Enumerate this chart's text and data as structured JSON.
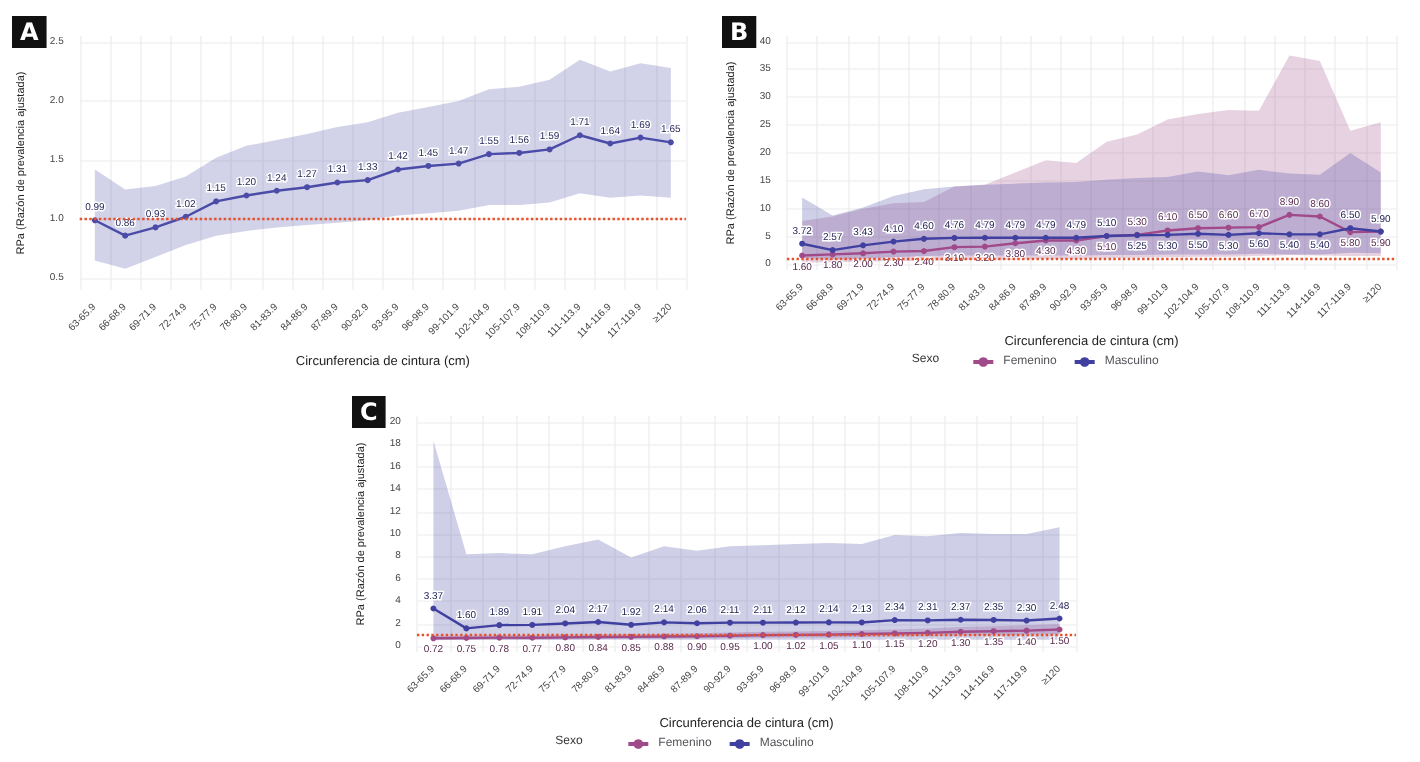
{
  "chart_data": [
    {
      "type": "line",
      "title": "A",
      "xlabel": "Circunferencia de cintura (cm)",
      "ylabel": "RPa (Razón de prevalencia ajustada)",
      "categories": [
        "63-65.9",
        "66-68.9",
        "69-71.9",
        "72-74.9",
        "75-77.9",
        "78-80.9",
        "81-83.9",
        "84-86.9",
        "87-89.9",
        "90-92.9",
        "93-95.9",
        "96-98.9",
        "99-101.9",
        "102-104.9",
        "105-107.9",
        "108-110.9",
        "111-113.9",
        "114-116.9",
        "117-119.9",
        "≥120"
      ],
      "series": [
        {
          "color": "#4b4ba8",
          "values": [
            0.99,
            0.86,
            0.93,
            1.02,
            1.15,
            1.2,
            1.24,
            1.27,
            1.31,
            1.33,
            1.42,
            1.45,
            1.47,
            1.55,
            1.56,
            1.59,
            1.71,
            1.64,
            1.69,
            1.65
          ],
          "value_labels": [
            "0.99",
            "0.86",
            "0.93",
            "1.02",
            "1.15",
            "1.20",
            "1.24",
            "1.27",
            "1.31",
            "1.33",
            "1.42",
            "1.45",
            "1.47",
            "1.55",
            "1.56",
            "1.59",
            "1.71",
            "1.64",
            "1.69",
            "1.65"
          ],
          "lower": [
            0.65,
            0.58,
            0.68,
            0.78,
            0.86,
            0.9,
            0.93,
            0.95,
            0.97,
            0.99,
            1.03,
            1.05,
            1.07,
            1.12,
            1.12,
            1.14,
            1.22,
            1.18,
            1.2,
            1.18
          ],
          "upper": [
            1.42,
            1.25,
            1.28,
            1.36,
            1.52,
            1.62,
            1.67,
            1.72,
            1.78,
            1.82,
            1.9,
            1.95,
            2.0,
            2.1,
            2.12,
            2.18,
            2.35,
            2.25,
            2.32,
            2.28
          ]
        }
      ],
      "ylim": [
        0.4,
        2.55
      ],
      "yticks": [
        {
          "value": 0.5,
          "label": "0.5"
        },
        {
          "value": 1,
          "label": "1.0"
        },
        {
          "value": 1.5,
          "label": "1.5"
        },
        {
          "value": 2,
          "label": "2.0"
        },
        {
          "value": 2.5,
          "label": "2.5"
        }
      ],
      "ref_lines": [
        {
          "axis": "y",
          "value": 1,
          "color": "#e8502a",
          "line_style": "dotted"
        }
      ],
      "grid": true,
      "marker": "circle",
      "line_style": "solid"
    },
    {
      "type": "line",
      "title": "B",
      "xlabel": "Circunferencia de cintura (cm)",
      "ylabel": "RPa (Razón de prevalencia ajustada)",
      "legend_title": "Sexo",
      "categories": [
        "63-65.9",
        "66-68.9",
        "69-71.9",
        "72-74.9",
        "75-77.9",
        "78-80.9",
        "81-83.9",
        "84-86.9",
        "87-89.9",
        "90-92.9",
        "93-95.9",
        "96-98.9",
        "99-101.9",
        "102-104.9",
        "105-107.9",
        "108-110.9",
        "111-113.9",
        "114-116.9",
        "117-119.9",
        "≥120"
      ],
      "series": [
        {
          "name": "Femenino",
          "color": "#a04a8a",
          "values": [
            1.6,
            1.8,
            2,
            2.3,
            2.4,
            3.1,
            3.2,
            3.8,
            4.3,
            4.3,
            5.1,
            5.3,
            6.1,
            6.5,
            6.6,
            6.7,
            8.9,
            8.6,
            5.8,
            5.9
          ],
          "value_labels": [
            "1.60",
            "1.80",
            "2.00",
            "2.30",
            "2.40",
            "3.10",
            "3.20",
            "3.80",
            "4.30",
            "4.30",
            "5.10",
            "5.30",
            "6.10",
            "6.50",
            "6.60",
            "6.70",
            "8.90",
            "8.60",
            "5.80",
            "5.90"
          ],
          "lower": [
            0.3,
            0.4,
            0.5,
            0.6,
            0.6,
            0.8,
            0.8,
            0.9,
            1.0,
            1.0,
            1.1,
            1.2,
            1.3,
            1.4,
            1.4,
            1.5,
            1.7,
            1.6,
            1.5,
            1.5
          ],
          "upper": [
            7.8,
            8.6,
            10.0,
            11.0,
            11.2,
            14.0,
            14.3,
            16.5,
            18.7,
            18.2,
            22.0,
            23.3,
            26.0,
            27.0,
            27.7,
            27.6,
            37.5,
            36.5,
            24.0,
            25.5
          ]
        },
        {
          "name": "Masculino",
          "color": "#4040a0",
          "values": [
            3.72,
            2.57,
            3.43,
            4.1,
            4.6,
            4.76,
            4.79,
            4.79,
            4.79,
            4.79,
            5.1,
            5.25,
            5.3,
            5.5,
            5.3,
            5.6,
            5.4,
            5.4,
            6.5,
            5.9
          ],
          "value_labels": [
            "3.72",
            "2.57",
            "3.43",
            "4.10",
            "4.60",
            "4.76",
            "4.79",
            "4.79",
            "4.79",
            "4.79",
            "5.10",
            "5.25",
            "5.30",
            "5.50",
            "5.30",
            "5.60",
            "5.40",
            "5.40",
            "6.50",
            "5.90"
          ],
          "lower": [
            1.2,
            0.8,
            1.1,
            1.3,
            1.5,
            1.6,
            1.6,
            1.6,
            1.6,
            1.6,
            1.7,
            1.7,
            1.8,
            1.8,
            1.8,
            1.9,
            1.8,
            1.8,
            2.1,
            2.0
          ],
          "upper": [
            12.0,
            8.8,
            10.2,
            12.3,
            13.5,
            14.0,
            14.3,
            14.5,
            14.7,
            14.8,
            15.2,
            15.5,
            15.7,
            16.7,
            16.0,
            17.0,
            16.3,
            16.1,
            20.0,
            16.5
          ]
        }
      ],
      "ylim": [
        -1,
        41
      ],
      "yticks": [
        0,
        5,
        10,
        15,
        20,
        25,
        30,
        35,
        40
      ],
      "ref_lines": [
        {
          "axis": "y",
          "value": 1,
          "color": "#e8502a",
          "line_style": "dotted"
        }
      ],
      "grid": true,
      "legend": "bottom",
      "marker": "circle",
      "line_style": "solid"
    },
    {
      "type": "line",
      "title": "C",
      "xlabel": "Circunferencia de cintura (cm)",
      "ylabel": "RPa (Razón de prevalencia ajustada)",
      "legend_title": "Sexo",
      "categories": [
        "63-65.9",
        "66-68.9",
        "69-71.9",
        "72-74.9",
        "75-77.9",
        "78-80.9",
        "81-83.9",
        "84-86.9",
        "87-89.9",
        "90-92.9",
        "93-95.9",
        "96-98.9",
        "99-101.9",
        "102-104.9",
        "105-107.9",
        "108-110.9",
        "111-113.9",
        "114-116.9",
        "117-119.9",
        "≥120"
      ],
      "series": [
        {
          "name": "Femenino",
          "color": "#a04a8a",
          "values": [
            0.72,
            0.75,
            0.78,
            0.77,
            0.8,
            0.84,
            0.85,
            0.88,
            0.9,
            0.95,
            1,
            1.02,
            1.05,
            1.1,
            1.15,
            1.2,
            1.3,
            1.35,
            1.4,
            1.5
          ],
          "value_labels": [
            "0.72",
            "0.75",
            "0.78",
            "0.77",
            "0.80",
            "0.84",
            "0.85",
            "0.88",
            "0.90",
            "0.95",
            "1.00",
            "1.02",
            "1.05",
            "1.10",
            "1.15",
            "1.20",
            "1.30",
            "1.35",
            "1.40",
            "1.50"
          ],
          "lower": [
            0.55,
            0.58,
            0.6,
            0.6,
            0.62,
            0.65,
            0.66,
            0.68,
            0.7,
            0.73,
            0.76,
            0.78,
            0.8,
            0.84,
            0.87,
            0.9,
            0.97,
            1.0,
            1.03,
            1.1
          ],
          "upper": [
            0.95,
            0.97,
            1.0,
            1.0,
            1.03,
            1.08,
            1.1,
            1.13,
            1.16,
            1.23,
            1.3,
            1.33,
            1.37,
            1.44,
            1.5,
            1.58,
            1.72,
            1.8,
            1.88,
            2.0
          ]
        },
        {
          "name": "Masculino",
          "color": "#4040a0",
          "values": [
            3.37,
            1.6,
            1.89,
            1.91,
            2.04,
            2.17,
            1.92,
            2.14,
            2.06,
            2.11,
            2.11,
            2.12,
            2.14,
            2.13,
            2.34,
            2.31,
            2.37,
            2.35,
            2.3,
            2.48
          ],
          "value_labels": [
            "3.37",
            "1.60",
            "1.89",
            "1.91",
            "2.04",
            "2.17",
            "1.92",
            "2.14",
            "2.06",
            "2.11",
            "2.11",
            "2.12",
            "2.14",
            "2.13",
            "2.34",
            "2.31",
            "2.37",
            "2.35",
            "2.30",
            "2.48"
          ],
          "lower": [
            0.6,
            0.6,
            0.6,
            0.6,
            0.6,
            0.6,
            0.6,
            0.6,
            0.6,
            0.6,
            0.6,
            0.6,
            0.6,
            0.6,
            0.6,
            0.6,
            0.6,
            0.6,
            0.6,
            0.6
          ],
          "upper": [
            18.3,
            8.2,
            8.3,
            8.2,
            8.9,
            9.5,
            7.9,
            8.9,
            8.5,
            8.9,
            9.0,
            9.1,
            9.2,
            9.1,
            9.9,
            9.8,
            10.1,
            10.0,
            10.0,
            10.6
          ]
        }
      ],
      "ylim": [
        -0.5,
        20.5
      ],
      "yticks": [
        0,
        2,
        4,
        6,
        8,
        10,
        12,
        14,
        16,
        18,
        20
      ],
      "ref_lines": [
        {
          "axis": "y",
          "value": 1,
          "color": "#e8502a",
          "line_style": "dotted"
        }
      ],
      "grid": true,
      "legend": "bottom",
      "marker": "circle",
      "line_style": "solid"
    }
  ]
}
